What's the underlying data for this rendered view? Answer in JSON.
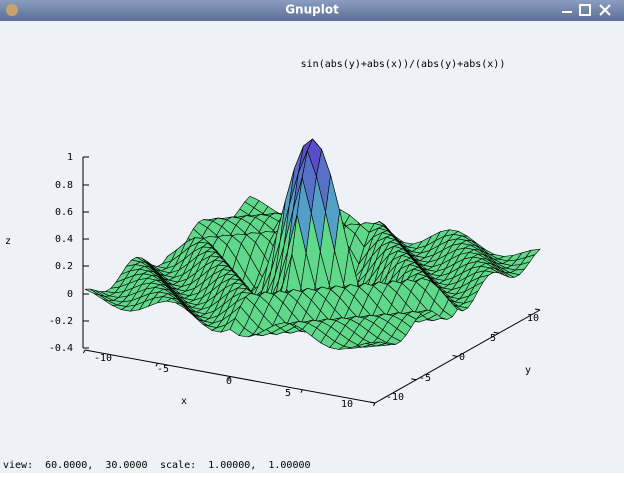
{
  "window": {
    "title": "Gnuplot"
  },
  "plot": {
    "function_label": "sin(abs(y)+abs(x))/(abs(y)+abs(x))",
    "z_axis": {
      "label": "z",
      "ticks": [
        "1",
        "0.8",
        "0.6",
        "0.4",
        "0.2",
        "0",
        "-0.2",
        "-0.4"
      ]
    },
    "x_axis": {
      "label": "x",
      "ticks": [
        "-10",
        "-5",
        "0",
        "5",
        "10"
      ]
    },
    "y_axis": {
      "label": "y",
      "ticks": [
        "-10",
        "-5",
        "0",
        "5",
        "10"
      ]
    }
  },
  "status_bar": {
    "view": "view:  60.0000,  30.0000",
    "scale": "scale:  1.00000,  1.00000"
  }
}
